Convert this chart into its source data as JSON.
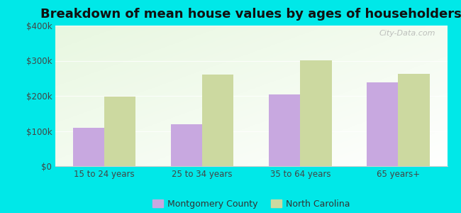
{
  "title": "Breakdown of mean house values by ages of householders",
  "categories": [
    "15 to 24 years",
    "25 to 34 years",
    "35 to 64 years",
    "65 years+"
  ],
  "series": [
    {
      "name": "Montgomery County",
      "values": [
        110000,
        120000,
        205000,
        238000
      ],
      "color": "#c8a8e0"
    },
    {
      "name": "North Carolina",
      "values": [
        198000,
        260000,
        302000,
        263000
      ],
      "color": "#ccd9a0"
    }
  ],
  "ylim": [
    0,
    400000
  ],
  "yticks": [
    0,
    100000,
    200000,
    300000,
    400000
  ],
  "ytick_labels": [
    "$0",
    "$100k",
    "$200k",
    "$300k",
    "$400k"
  ],
  "background_color": "#00e8e8",
  "title_fontsize": 13,
  "bar_width": 0.32,
  "watermark": "City-Data.com",
  "legend_labels": [
    "Montgomery County",
    "North Carolina"
  ]
}
